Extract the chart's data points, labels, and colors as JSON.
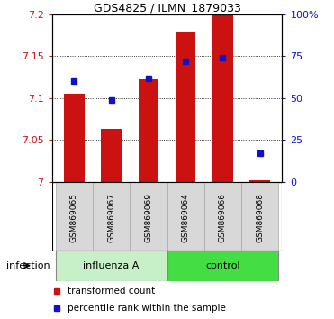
{
  "title": "GDS4825 / ILMN_1879033",
  "categories": [
    "GSM869065",
    "GSM869067",
    "GSM869069",
    "GSM869064",
    "GSM869066",
    "GSM869068"
  ],
  "bar_values": [
    7.105,
    7.063,
    7.122,
    7.18,
    7.2,
    7.002
  ],
  "percentile_values": [
    60,
    49,
    62,
    72,
    74,
    17
  ],
  "ylim_left": [
    7.0,
    7.2
  ],
  "ylim_right": [
    0,
    100
  ],
  "yticks_left": [
    7.0,
    7.05,
    7.1,
    7.15,
    7.2
  ],
  "ytick_labels_left": [
    "7",
    "7.05",
    "7.1",
    "7.15",
    "7.2"
  ],
  "yticks_right": [
    0,
    25,
    50,
    75,
    100
  ],
  "ytick_labels_right": [
    "0",
    "25",
    "50",
    "75",
    "100%"
  ],
  "bar_color": "#cc1111",
  "marker_color": "#1111cc",
  "bar_bottom": 7.0,
  "groups": [
    {
      "label": "influenza A",
      "indices": [
        0,
        1,
        2
      ],
      "color": "#c8f0c8"
    },
    {
      "label": "control",
      "indices": [
        3,
        4,
        5
      ],
      "color": "#44dd44"
    }
  ],
  "group_label": "infection",
  "legend_items": [
    {
      "label": "transformed count",
      "color": "#cc1111"
    },
    {
      "label": "percentile rank within the sample",
      "color": "#1111cc"
    }
  ],
  "grid_dotted_at": [
    7.05,
    7.1,
    7.15
  ]
}
